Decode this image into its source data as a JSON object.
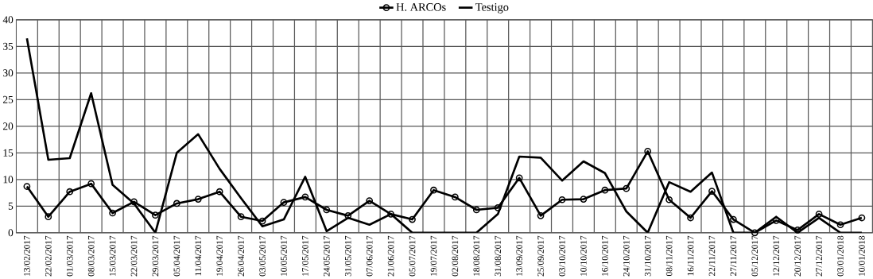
{
  "chart_data": {
    "type": "line",
    "categories": [
      "13/02/2017",
      "22/02/2017",
      "01/03/2017",
      "08/03/2017",
      "15/03/2017",
      "22/03/2017",
      "29/03/2017",
      "05/04/2017",
      "11/04/2017",
      "19/04/2017",
      "26/04/2017",
      "03/05/2017",
      "10/05/2017",
      "17/05/2017",
      "24/05/2017",
      "31/05/2017",
      "07/06/2017",
      "21/06/2017",
      "05/07/2017",
      "19/07/2017",
      "02/08/2017",
      "18/08/2017",
      "31/08/2017",
      "13/09/2017",
      "25/09/2017",
      "03/10/2017",
      "10/10/2017",
      "16/10/2017",
      "24/10/2017",
      "31/10/2017",
      "08/11/2017",
      "16/11/2017",
      "22/11/2017",
      "27/11/2017",
      "05/12/2017",
      "12/12/2017",
      "20/12/2017",
      "27/12/2017",
      "03/01/2018",
      "10/01/2018"
    ],
    "series": [
      {
        "name": "H. ARCOs",
        "color": "#000000",
        "marker": "circle",
        "values": [
          8.7,
          3,
          7.7,
          9.2,
          3.7,
          5.8,
          3.3,
          5.5,
          6.3,
          7.7,
          3,
          2.2,
          5.7,
          6.7,
          4.3,
          3.2,
          6,
          3.5,
          2.5,
          8,
          6.7,
          4.3,
          4.7,
          10.3,
          3.2,
          6.2,
          6.3,
          8,
          8.3,
          15.3,
          6.2,
          2.8,
          7.8,
          2.5,
          0,
          2.3,
          0.5,
          3.5,
          1.5,
          2.8
        ]
      },
      {
        "name": "Testigo",
        "color": "#000000",
        "marker": "none",
        "values": [
          36.5,
          13.7,
          14,
          26.2,
          9,
          5.5,
          0,
          15,
          18.5,
          12,
          6.5,
          1.2,
          2.5,
          10.5,
          0.3,
          2.8,
          1.5,
          3.5,
          0,
          0,
          0,
          0,
          3.5,
          14.3,
          14.1,
          9.8,
          13.4,
          11.2,
          4,
          0,
          9.5,
          7.7,
          11.3,
          0,
          0,
          3,
          0,
          2.8,
          0,
          0
        ]
      }
    ],
    "ylim": [
      0,
      40
    ],
    "yticks": [
      0,
      5,
      10,
      15,
      20,
      25,
      30,
      35,
      40
    ],
    "grid": true,
    "legend": "top",
    "line_style": "solid"
  }
}
